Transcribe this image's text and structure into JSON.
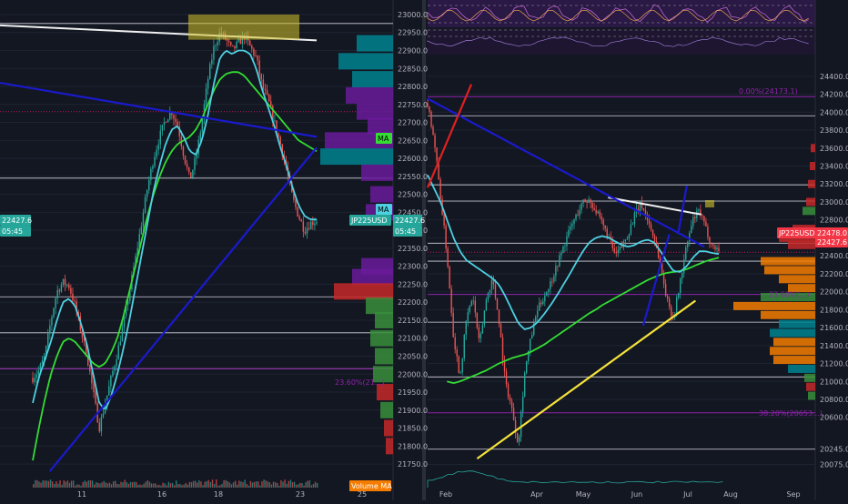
{
  "colors": {
    "background": "#131722",
    "grid": "#1e2331",
    "axis_text": "#b2b5be",
    "bull_candle": "#26a69a",
    "bear_candle": "#ef5350",
    "ma_fast": "#4dd0e1",
    "ma_slow": "#33dd33",
    "trend_blue": "#1a1acc",
    "trend_white": "#f0f0f0",
    "trend_yellow": "#f5e13a",
    "trend_red": "#e02020",
    "fib_purple": "#8e24aa",
    "price_tag": "#f23645",
    "ma_tag_green": "#33dd33",
    "ma_tag_cyan": "#4dd0e1"
  },
  "chart_data": [
    {
      "type": "candlestick",
      "panel": "left",
      "symbol": "JP225USD",
      "ylim": [
        21730,
        23010
      ],
      "y_ticks": [
        23000,
        22950,
        22900,
        22850,
        22800,
        22750,
        22700,
        22650,
        22600,
        22550,
        22500,
        22450,
        22400,
        22350,
        22300,
        22250,
        22200,
        22150,
        22100,
        22050,
        22000,
        21950,
        21900,
        21850,
        21800,
        21750
      ],
      "x_tick_labels": [
        "11",
        "16",
        "18",
        "23",
        "25"
      ],
      "last_price_label": "22427.6",
      "countdown_label": "05:45",
      "ma_label": "MA",
      "volume_ma_label": "Volume MA",
      "fib_label": "23.60%(21...)",
      "resistance_levels": [
        22975,
        22545,
        22215,
        22115,
        22015
      ],
      "fib_level": 22015,
      "red_level": 22730,
      "trendlines": {
        "white": [
          [
            0,
            22970
          ],
          [
            1,
            22928
          ]
        ],
        "blue_falling": [
          [
            0,
            22810
          ],
          [
            1,
            22660
          ]
        ],
        "blue_rising": [
          [
            0.06,
            21730
          ],
          [
            1,
            22630
          ]
        ]
      },
      "highlight_box": {
        "y_range": [
          22930,
          23000
        ]
      },
      "price_path": [
        21990,
        22010,
        22050,
        22150,
        22230,
        22255,
        22245,
        22190,
        22120,
        22050,
        21950,
        21850,
        21920,
        21990,
        22060,
        22140,
        22230,
        22320,
        22420,
        22520,
        22600,
        22660,
        22710,
        22730,
        22690,
        22610,
        22540,
        22600,
        22700,
        22820,
        22910,
        22950,
        22930,
        22900,
        22920,
        22940,
        22910,
        22880,
        22800,
        22760,
        22700,
        22640,
        22570,
        22490,
        22440,
        22400,
        22420,
        22427.6
      ],
      "ma_fast": [
        21920,
        21990,
        22040,
        22090,
        22150,
        22200,
        22210,
        22190,
        22140,
        22080,
        22000,
        21920,
        21900,
        21940,
        22000,
        22070,
        22150,
        22240,
        22330,
        22420,
        22510,
        22580,
        22640,
        22680,
        22690,
        22660,
        22620,
        22610,
        22650,
        22720,
        22810,
        22880,
        22900,
        22890,
        22900,
        22900,
        22890,
        22850,
        22790,
        22740,
        22690,
        22630,
        22580,
        22520,
        22470,
        22440,
        22430,
        22430
      ],
      "ma_slow": [
        21760,
        21850,
        21930,
        22000,
        22050,
        22090,
        22100,
        22090,
        22070,
        22050,
        22030,
        22020,
        22030,
        22060,
        22100,
        22160,
        22230,
        22300,
        22370,
        22440,
        22500,
        22550,
        22590,
        22620,
        22640,
        22650,
        22660,
        22680,
        22710,
        22750,
        22790,
        22820,
        22835,
        22840,
        22840,
        22830,
        22810,
        22790,
        22770,
        22750,
        22730,
        22710,
        22690,
        22670,
        22650,
        22640,
        22630,
        22620
      ]
    },
    {
      "type": "candlestick",
      "panel": "right",
      "symbol": "JP225USD",
      "ylim": [
        20060,
        24520
      ],
      "y_ticks": [
        24400,
        24200,
        24000,
        23800,
        23600,
        23400,
        23200,
        23000,
        22800,
        22600,
        22400,
        22200,
        22000,
        21800,
        21600,
        21400,
        21200,
        21000,
        20800,
        20600,
        20245,
        20075
      ],
      "x_tick_labels": [
        "Feb",
        "Apr",
        "May",
        "Jun",
        "Jul",
        "Aug",
        "Sep"
      ],
      "last_price_label": "22427.6",
      "symbol_price_label": "22478.0",
      "indicator_tick": "40.00",
      "fib_labels": [
        "0.00%(24173.1)",
        "23.60%(...)",
        "38.20%(20653...)"
      ],
      "fib_levels": [
        24173,
        21970,
        20650
      ],
      "resistance_levels": [
        23960,
        23190,
        23010,
        22540,
        22340,
        21660,
        21050,
        20245
      ],
      "red_level": 22440,
      "trendlines": {
        "white": [
          [
            0.62,
            23050
          ],
          [
            0.94,
            22860
          ]
        ],
        "blue_falling": [
          [
            0,
            24150
          ],
          [
            0.95,
            22500
          ]
        ],
        "yellow_rising": [
          [
            0.17,
            20140
          ],
          [
            0.92,
            21900
          ]
        ],
        "red_short": [
          [
            0,
            23160
          ],
          [
            0.15,
            24310
          ]
        ],
        "blue_short_up": [
          [
            0.74,
            21620
          ],
          [
            0.83,
            22640
          ]
        ],
        "blue_short_up2": [
          [
            0.86,
            22640
          ],
          [
            0.89,
            23180
          ]
        ]
      },
      "price_path": [
        24100,
        23700,
        23050,
        22400,
        21500,
        21050,
        21700,
        21950,
        21400,
        21900,
        22150,
        21700,
        21000,
        20700,
        20300,
        21100,
        21500,
        21800,
        21950,
        22100,
        22300,
        22500,
        22700,
        22850,
        23000,
        23020,
        22900,
        22750,
        22600,
        22400,
        22500,
        22650,
        22850,
        22980,
        22800,
        22600,
        22300,
        21900,
        21700,
        22100,
        22500,
        22800,
        22900,
        22700,
        22500,
        22478
      ],
      "ma_fast": [
        23300,
        23150,
        23000,
        22800,
        22600,
        22450,
        22350,
        22300,
        22250,
        22200,
        22150,
        22080,
        21950,
        21800,
        21650,
        21580,
        21600,
        21660,
        21750,
        21850,
        21960,
        22080,
        22200,
        22330,
        22450,
        22550,
        22600,
        22620,
        22600,
        22560,
        22520,
        22500,
        22520,
        22560,
        22580,
        22550,
        22450,
        22330,
        22230,
        22220,
        22280,
        22380,
        22450,
        22450,
        22430,
        22420
      ],
      "ma_slow": [
        null,
        null,
        null,
        21000,
        20980,
        21000,
        21030,
        21060,
        21090,
        21120,
        21160,
        21200,
        21230,
        21260,
        21280,
        21300,
        21330,
        21370,
        21410,
        21460,
        21510,
        21560,
        21610,
        21660,
        21710,
        21760,
        21800,
        21850,
        21890,
        21930,
        21970,
        22010,
        22050,
        22090,
        22130,
        22160,
        22190,
        22210,
        22220,
        22230,
        22250,
        22280,
        22310,
        22340,
        22360,
        22380
      ]
    }
  ]
}
